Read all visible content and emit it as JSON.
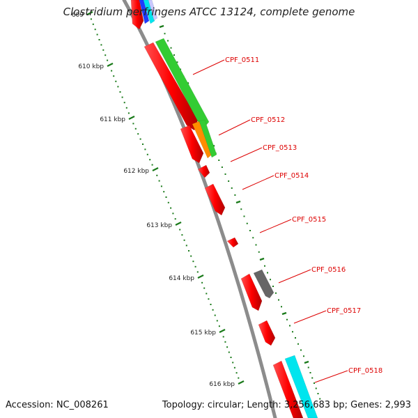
{
  "title": "Clostridium perfringens ATCC 13124, complete genome",
  "footer": {
    "accession_label": "Accession: NC_008261",
    "topology_label": "Topology: circular; Length: 3,256,683 bp; Genes: 2,993"
  },
  "kbp_ticks": [
    "609",
    "610 kbp",
    "611 kbp",
    "612 kbp",
    "613 kbp",
    "614 kbp",
    "615 kbp",
    "616 kbp"
  ],
  "gene_labels": [
    "CPF_0511",
    "CPF_0512",
    "CPF_0513",
    "CPF_0514",
    "CPF_0515",
    "CPF_0516",
    "CPF_0517",
    "CPF_0518"
  ],
  "colors": {
    "backbone": "#8c8c8c",
    "forward_cds": "#ff0000",
    "label_red": "#dd0000",
    "tick_green": "#1a7a1a",
    "green_feature": "#33cc33",
    "orange_feature": "#ff8c00",
    "gray_feature": "#666666",
    "cyan_feature": "#00e5ee",
    "blue_feature": "#1e3cff"
  }
}
